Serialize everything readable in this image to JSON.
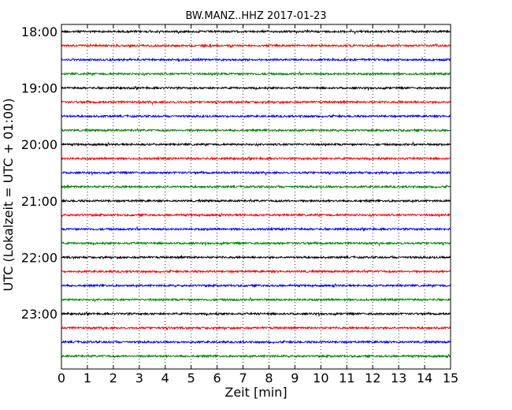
{
  "chart_data": {
    "type": "line",
    "title": "BW.MANZ..HHZ 2017-01-23",
    "xlabel": "Zeit  [min]",
    "ylabel": "UTC (Lokalzeit = UTC + 01:00)",
    "xlim": [
      0,
      15
    ],
    "x_ticks": [
      "0",
      "1",
      "2",
      "3",
      "4",
      "5",
      "6",
      "7",
      "8",
      "9",
      "10",
      "11",
      "12",
      "13",
      "14",
      "15"
    ],
    "y_tick_labels": [
      "18:00",
      "19:00",
      "20:00",
      "21:00",
      "22:00",
      "23:00"
    ],
    "trace_start": "18:00",
    "trace_interval_min": 15,
    "trace_count": 24,
    "trace_colors": [
      "#000000",
      "#ff0000",
      "#0000ff",
      "#008000"
    ],
    "grid": "vertical dotted at each minute"
  }
}
